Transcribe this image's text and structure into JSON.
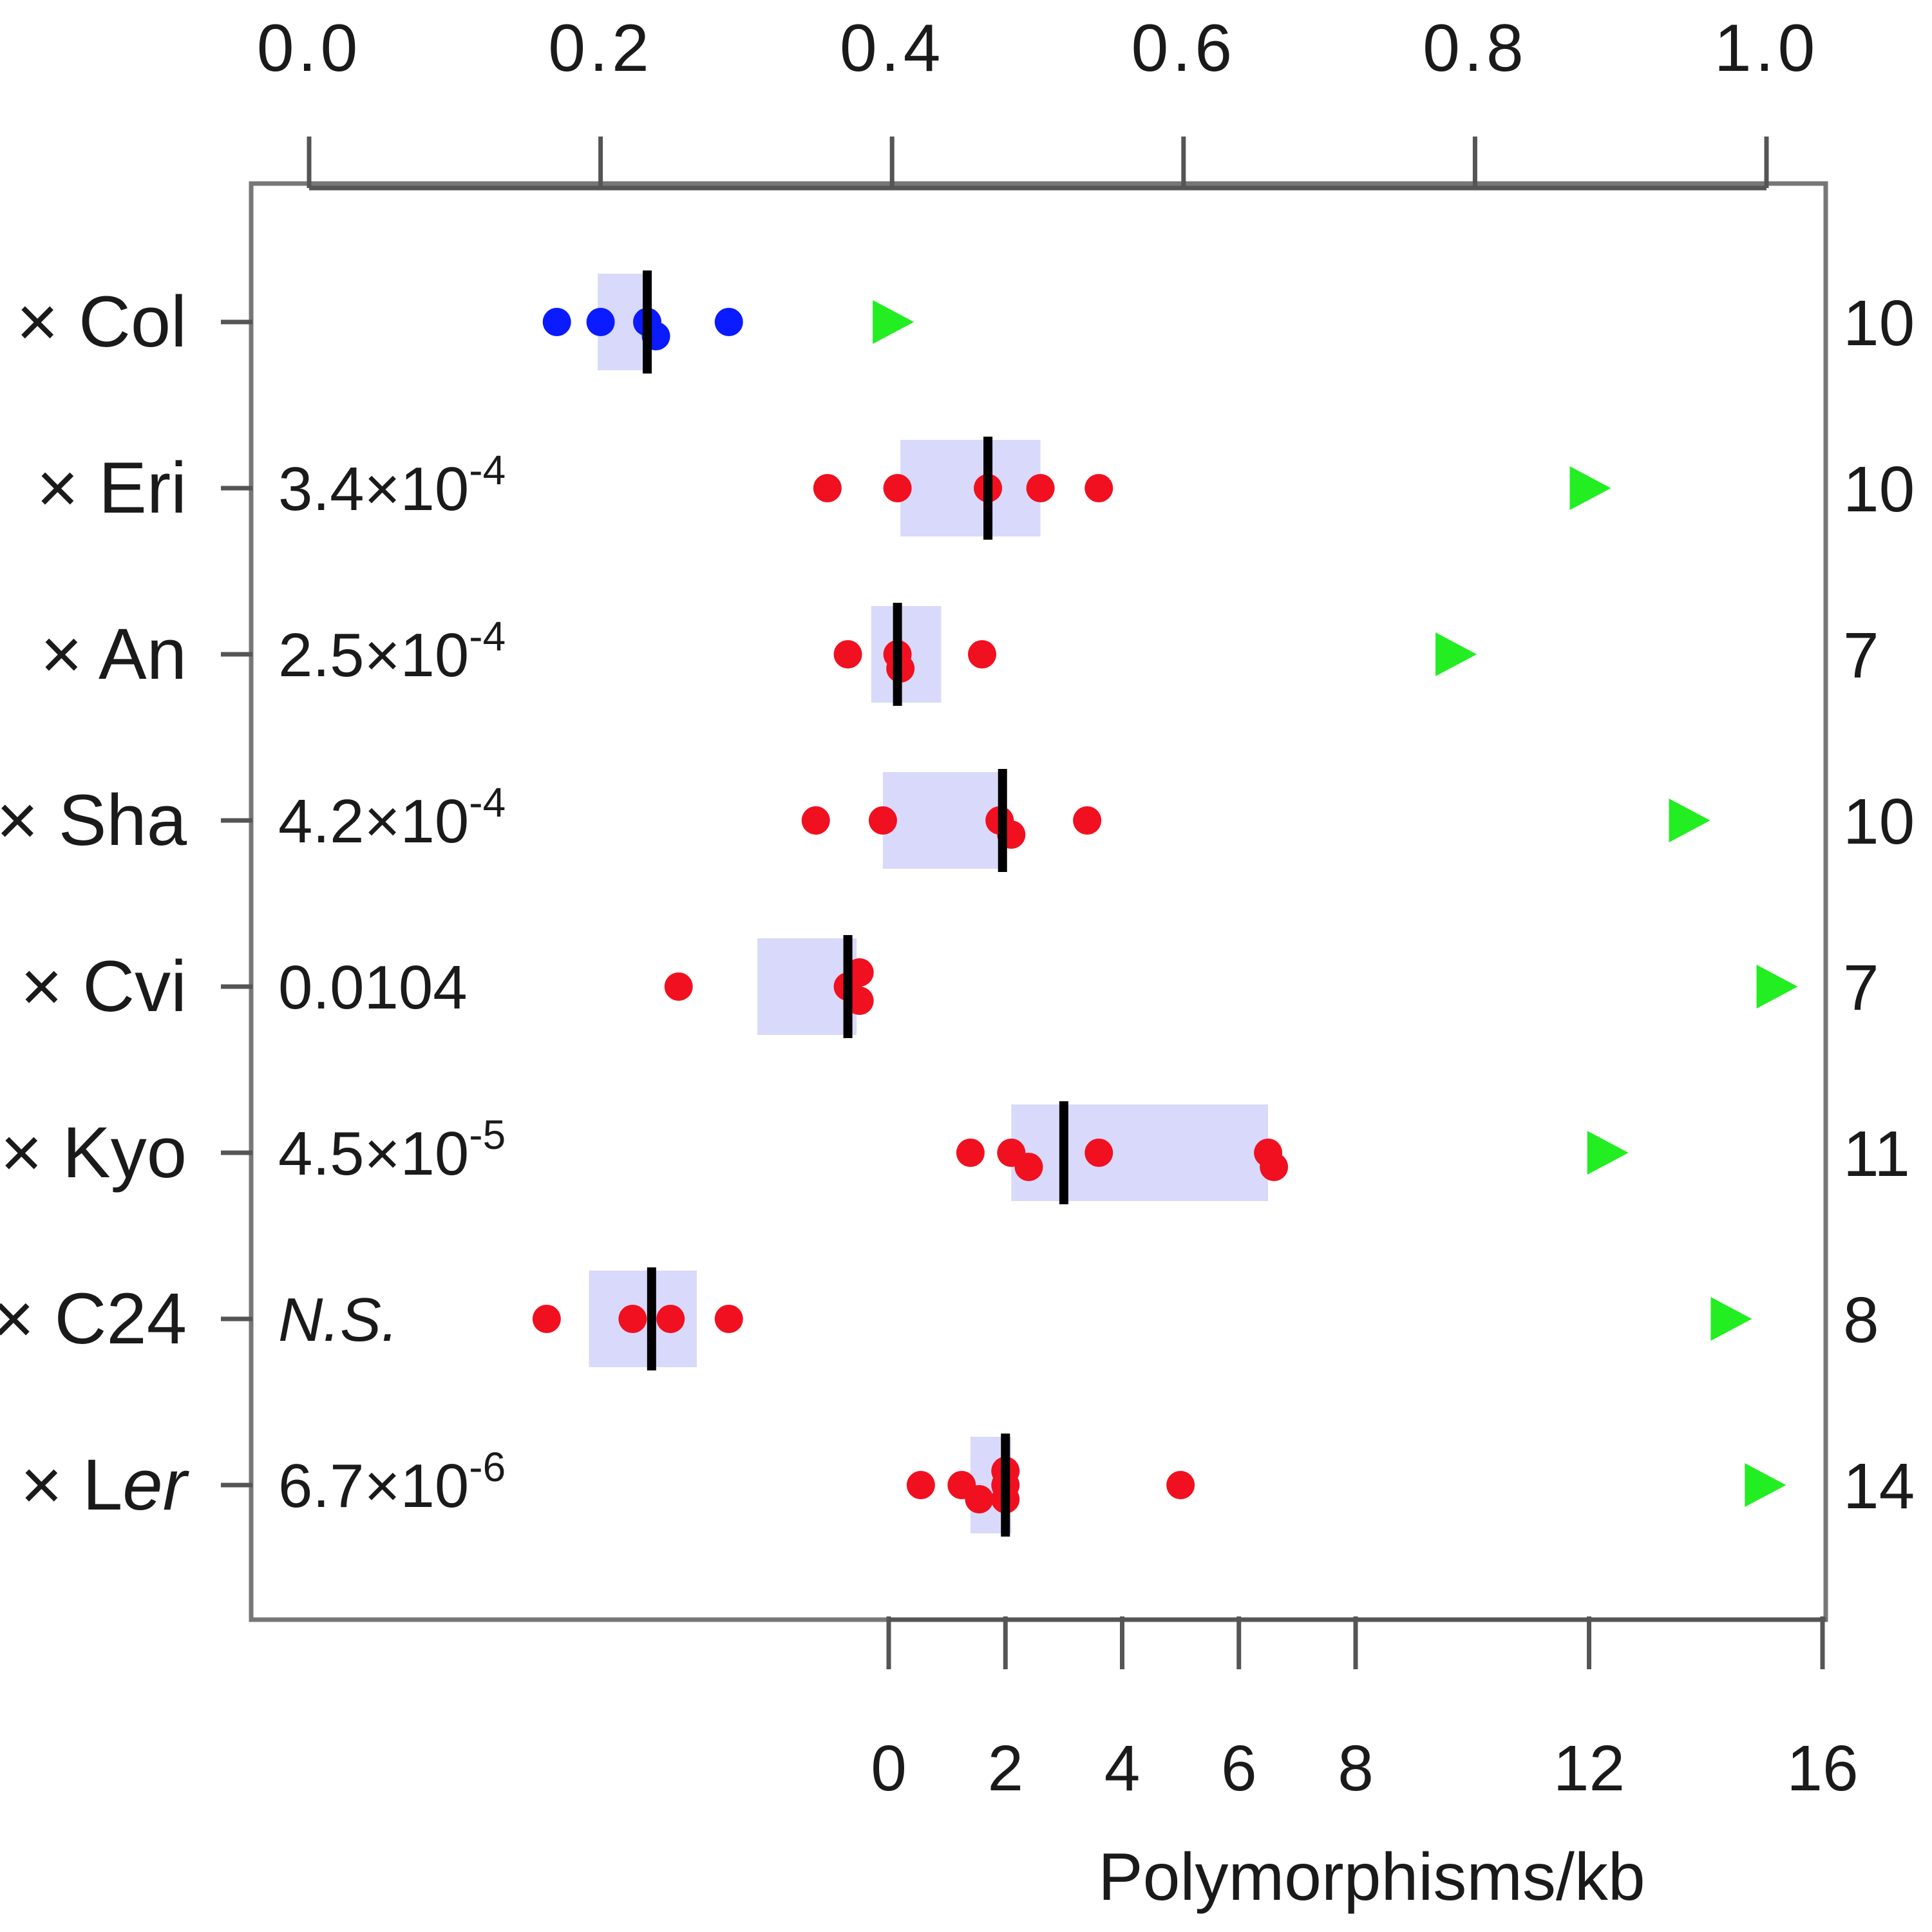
{
  "chart_data": {
    "type": "strip",
    "top_axis": {
      "ticks": [
        "0.0",
        "0.2",
        "0.4",
        "0.6",
        "0.8",
        "1.0"
      ],
      "range": [
        0.0,
        1.0
      ]
    },
    "bottom_axis": {
      "ticks": [
        "0",
        "2",
        "4",
        "6",
        "8",
        "12",
        "16"
      ],
      "tick_values": [
        0,
        2,
        4,
        6,
        8,
        12,
        16
      ],
      "range": [
        0,
        16
      ],
      "label": "Polymorphisms/kb"
    },
    "colors": {
      "reference": "#0a1bff",
      "sample": "#f01020",
      "triangle": "#22ee22",
      "box": "#d9d9fb",
      "median": "#000000"
    },
    "rows": [
      {
        "label": "× Col",
        "italic_part": "",
        "pvalue": "",
        "pvalue_italic": false,
        "count": "10",
        "scale": "top",
        "color": "reference",
        "points": [
          {
            "x": 0.17,
            "d": 0
          },
          {
            "x": 0.2,
            "d": 0
          },
          {
            "x": 0.232,
            "d": 0
          },
          {
            "x": 0.238,
            "d": 1
          },
          {
            "x": 0.288,
            "d": 0
          }
        ],
        "box": [
          0.198,
          0.235
        ],
        "median": 0.232,
        "triangle": 0.4
      },
      {
        "label": "× Eri",
        "italic_part": "",
        "pvalue": "3.4×10",
        "pvalue_exp": "-4",
        "pvalue_italic": false,
        "count": "10",
        "scale": "bottom",
        "color": "sample",
        "points": [
          {
            "x": -1.05,
            "d": 0
          },
          {
            "x": 0.15,
            "d": 0
          },
          {
            "x": 1.7,
            "d": 0
          },
          {
            "x": 2.6,
            "d": 0
          },
          {
            "x": 3.6,
            "d": 0
          }
        ],
        "box": [
          0.2,
          2.6
        ],
        "median": 1.7,
        "triangle": 12.0
      },
      {
        "label": "× An",
        "italic_part": "",
        "pvalue": "2.5×10",
        "pvalue_exp": "-4",
        "pvalue_italic": false,
        "count": "7",
        "scale": "bottom",
        "color": "sample",
        "points": [
          {
            "x": -0.7,
            "d": 0
          },
          {
            "x": 0.15,
            "d": 0
          },
          {
            "x": 0.2,
            "d": 1
          },
          {
            "x": 1.6,
            "d": 0
          }
        ],
        "box": [
          -0.3,
          0.9
        ],
        "median": 0.15,
        "triangle": 9.7
      },
      {
        "label": "× Sha",
        "italic_part": "",
        "pvalue": "4.2×10",
        "pvalue_exp": "-4",
        "pvalue_italic": false,
        "count": "10",
        "scale": "bottom",
        "color": "sample",
        "points": [
          {
            "x": -1.25,
            "d": 0
          },
          {
            "x": -0.1,
            "d": 0
          },
          {
            "x": 1.9,
            "d": 0
          },
          {
            "x": 2.1,
            "d": 1
          },
          {
            "x": 3.4,
            "d": 0
          }
        ],
        "box": [
          -0.1,
          2.0
        ],
        "median": 1.95,
        "triangle": 13.7
      },
      {
        "label": "× Cvi",
        "italic_part": "",
        "pvalue": "0.0104",
        "pvalue_exp": "",
        "pvalue_italic": false,
        "count": "7",
        "scale": "bottom",
        "color": "sample",
        "points": [
          {
            "x": -3.6,
            "d": 0
          },
          {
            "x": -0.7,
            "d": 0
          },
          {
            "x": -0.5,
            "d": -1
          },
          {
            "x": -0.5,
            "d": 1
          }
        ],
        "box": [
          -2.25,
          -0.55
        ],
        "median": -0.7,
        "triangle": 15.2
      },
      {
        "label": "× Kyo",
        "italic_part": "",
        "pvalue": "4.5×10",
        "pvalue_exp": "-5",
        "pvalue_italic": false,
        "count": "11",
        "scale": "bottom",
        "color": "sample",
        "points": [
          {
            "x": 1.4,
            "d": 0
          },
          {
            "x": 2.1,
            "d": 0
          },
          {
            "x": 2.4,
            "d": 1
          },
          {
            "x": 3.6,
            "d": 0
          },
          {
            "x": 6.5,
            "d": 0
          },
          {
            "x": 6.6,
            "d": 1
          }
        ],
        "box": [
          2.1,
          6.5
        ],
        "median": 3.0,
        "triangle": 12.3
      },
      {
        "label": "× C24",
        "italic_part": "",
        "pvalue": "N.S.",
        "pvalue_exp": "",
        "pvalue_italic": true,
        "count": "8",
        "scale": "top",
        "color": "sample",
        "points": [
          {
            "x": 0.163,
            "d": 0
          },
          {
            "x": 0.222,
            "d": 0
          },
          {
            "x": 0.248,
            "d": 0
          },
          {
            "x": 0.288,
            "d": 0
          }
        ],
        "box": [
          0.192,
          0.266
        ],
        "median": 0.235,
        "triangle": 0.975
      },
      {
        "label": "× L",
        "italic_part": "er",
        "pvalue": "6.7×10",
        "pvalue_exp": "-6",
        "pvalue_italic": false,
        "count": "14",
        "scale": "bottom",
        "color": "sample",
        "points": [
          {
            "x": 0.55,
            "d": 0
          },
          {
            "x": 1.25,
            "d": 0
          },
          {
            "x": 1.55,
            "d": 1
          },
          {
            "x": 2.0,
            "d": -1
          },
          {
            "x": 2.0,
            "d": 0
          },
          {
            "x": 2.0,
            "d": 1
          },
          {
            "x": 5.0,
            "d": 0
          }
        ],
        "box": [
          1.4,
          2.1
        ],
        "median": 2.0,
        "triangle": 15.0
      }
    ]
  }
}
